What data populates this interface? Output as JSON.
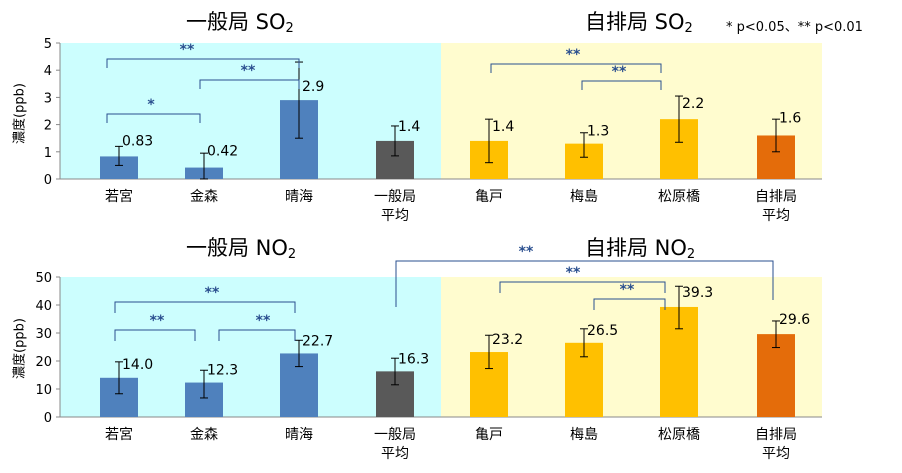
{
  "titles": {
    "so2_general": {
      "main": "一般局 SO",
      "sub": "2"
    },
    "so2_roadside": {
      "main": "自排局 SO",
      "sub": "2"
    },
    "no2_general": {
      "main": "一般局 NO",
      "sub": "2"
    },
    "no2_roadside": {
      "main": "自排局 NO",
      "sub": "2"
    }
  },
  "significance_note": "* p<0.05、** p<0.01",
  "colors": {
    "general_bg": "#ccfefe",
    "roadside_bg": "#fffccf",
    "general_bar": "#4f81bd",
    "general_avg_no2": "#595959",
    "roadside_bar": "#ffc000",
    "roadside_avg_no2": "#e46c0a",
    "bracket": "#2a4f8f"
  },
  "chart_data": [
    {
      "type": "bar",
      "title": "一般局 SO2 / 自排局 SO2",
      "ylabel": "濃度(ppb)",
      "ylim": [
        0,
        5
      ],
      "yticks": [
        "0",
        "1",
        "2",
        "3",
        "4",
        "5"
      ],
      "categories": [
        "若宮",
        "金森",
        "晴海",
        "一般局\n平均",
        "亀戸",
        "梅島",
        "松原橋",
        "自排局\n平均"
      ],
      "values": [
        0.83,
        0.42,
        2.9,
        1.4,
        1.4,
        1.3,
        2.2,
        1.6
      ],
      "value_labels": [
        "0.83",
        "0.42",
        "2.9",
        "1.4",
        "1.4",
        "1.3",
        "2.2",
        "1.6"
      ],
      "error_low": [
        0.5,
        0.0,
        1.5,
        0.85,
        0.6,
        0.8,
        1.35,
        1.0
      ],
      "error_high": [
        1.2,
        0.95,
        4.3,
        1.95,
        2.2,
        1.7,
        3.05,
        2.2
      ],
      "bar_colors": [
        "#4f81bd",
        "#4f81bd",
        "#4f81bd",
        "#595959",
        "#ffc000",
        "#ffc000",
        "#ffc000",
        "#e46c0a"
      ],
      "grid": false,
      "significance": [
        {
          "from": 0,
          "to": 2,
          "mark": "**"
        },
        {
          "from": 1,
          "to": 2,
          "mark": "**"
        },
        {
          "from": 0,
          "to": 1,
          "mark": "*"
        },
        {
          "from": 4,
          "to": 6,
          "mark": "**"
        },
        {
          "from": 5,
          "to": 6,
          "mark": "**"
        }
      ]
    },
    {
      "type": "bar",
      "title": "一般局 NO2 / 自排局 NO2",
      "ylabel": "濃度(ppb)",
      "ylim": [
        0,
        50
      ],
      "yticks": [
        "0",
        "10",
        "20",
        "30",
        "40",
        "50"
      ],
      "categories": [
        "若宮",
        "金森",
        "晴海",
        "一般局\n平均",
        "亀戸",
        "梅島",
        "松原橋",
        "自排局\n平均"
      ],
      "values": [
        14.0,
        12.3,
        22.7,
        16.3,
        23.2,
        26.5,
        39.3,
        29.6
      ],
      "value_labels": [
        "14.0",
        "12.3",
        "22.7",
        "16.3",
        "23.2",
        "26.5",
        "39.3",
        "29.6"
      ],
      "error_low": [
        8.3,
        6.8,
        18.0,
        11.5,
        17.3,
        21.5,
        31.5,
        24.8
      ],
      "error_high": [
        19.7,
        16.7,
        27.4,
        21.0,
        29.2,
        31.5,
        46.7,
        34.3
      ],
      "bar_colors": [
        "#4f81bd",
        "#4f81bd",
        "#4f81bd",
        "#595959",
        "#ffc000",
        "#ffc000",
        "#ffc000",
        "#e46c0a"
      ],
      "grid": false,
      "significance": [
        {
          "from": 0,
          "to": 2,
          "mark": "**"
        },
        {
          "from": 0,
          "to": 1,
          "mark": "**"
        },
        {
          "from": 1,
          "to": 2,
          "mark": "**"
        },
        {
          "from": 3,
          "to": 7,
          "mark": "**"
        },
        {
          "from": 4,
          "to": 6,
          "mark": "**"
        },
        {
          "from": 5,
          "to": 6,
          "mark": "**"
        }
      ]
    }
  ]
}
